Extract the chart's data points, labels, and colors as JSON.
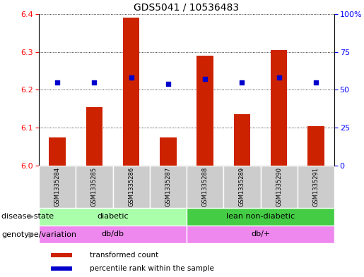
{
  "title": "GDS5041 / 10536483",
  "samples": [
    "GSM1335284",
    "GSM1335285",
    "GSM1335286",
    "GSM1335287",
    "GSM1335288",
    "GSM1335289",
    "GSM1335290",
    "GSM1335291"
  ],
  "bar_values": [
    6.075,
    6.155,
    6.39,
    6.075,
    6.29,
    6.135,
    6.305,
    6.105
  ],
  "bar_base": 6.0,
  "percentile_values": [
    55,
    55,
    58,
    54,
    57,
    55,
    58,
    55
  ],
  "ylim_left": [
    6.0,
    6.4
  ],
  "ylim_right": [
    0,
    100
  ],
  "yticks_left": [
    6.0,
    6.1,
    6.2,
    6.3,
    6.4
  ],
  "yticks_right": [
    0,
    25,
    50,
    75,
    100
  ],
  "yticklabels_right": [
    "0",
    "25",
    "50",
    "75",
    "100%"
  ],
  "bar_color": "#cc2200",
  "dot_color": "#0000cc",
  "background_color": "#ffffff",
  "plot_bg_color": "#ffffff",
  "disease_state_labels": [
    "diabetic",
    "lean non-diabetic"
  ],
  "disease_state_ranges": [
    [
      0,
      4
    ],
    [
      4,
      8
    ]
  ],
  "disease_state_color_left": "#aaffaa",
  "disease_state_color_right": "#44cc44",
  "genotype_labels": [
    "db/db",
    "db/+"
  ],
  "genotype_ranges": [
    [
      0,
      4
    ],
    [
      4,
      8
    ]
  ],
  "genotype_color": "#ee88ee",
  "sample_bg_color": "#cccccc",
  "legend_items": [
    {
      "color": "#cc2200",
      "label": "transformed count"
    },
    {
      "color": "#0000cc",
      "label": "percentile rank within the sample"
    }
  ],
  "arrow_color": "#888888",
  "row_label_disease": "disease state",
  "row_label_genotype": "genotype/variation",
  "title_fontsize": 10,
  "tick_fontsize": 8,
  "sample_fontsize": 6,
  "row_fontsize": 8,
  "legend_fontsize": 7.5
}
